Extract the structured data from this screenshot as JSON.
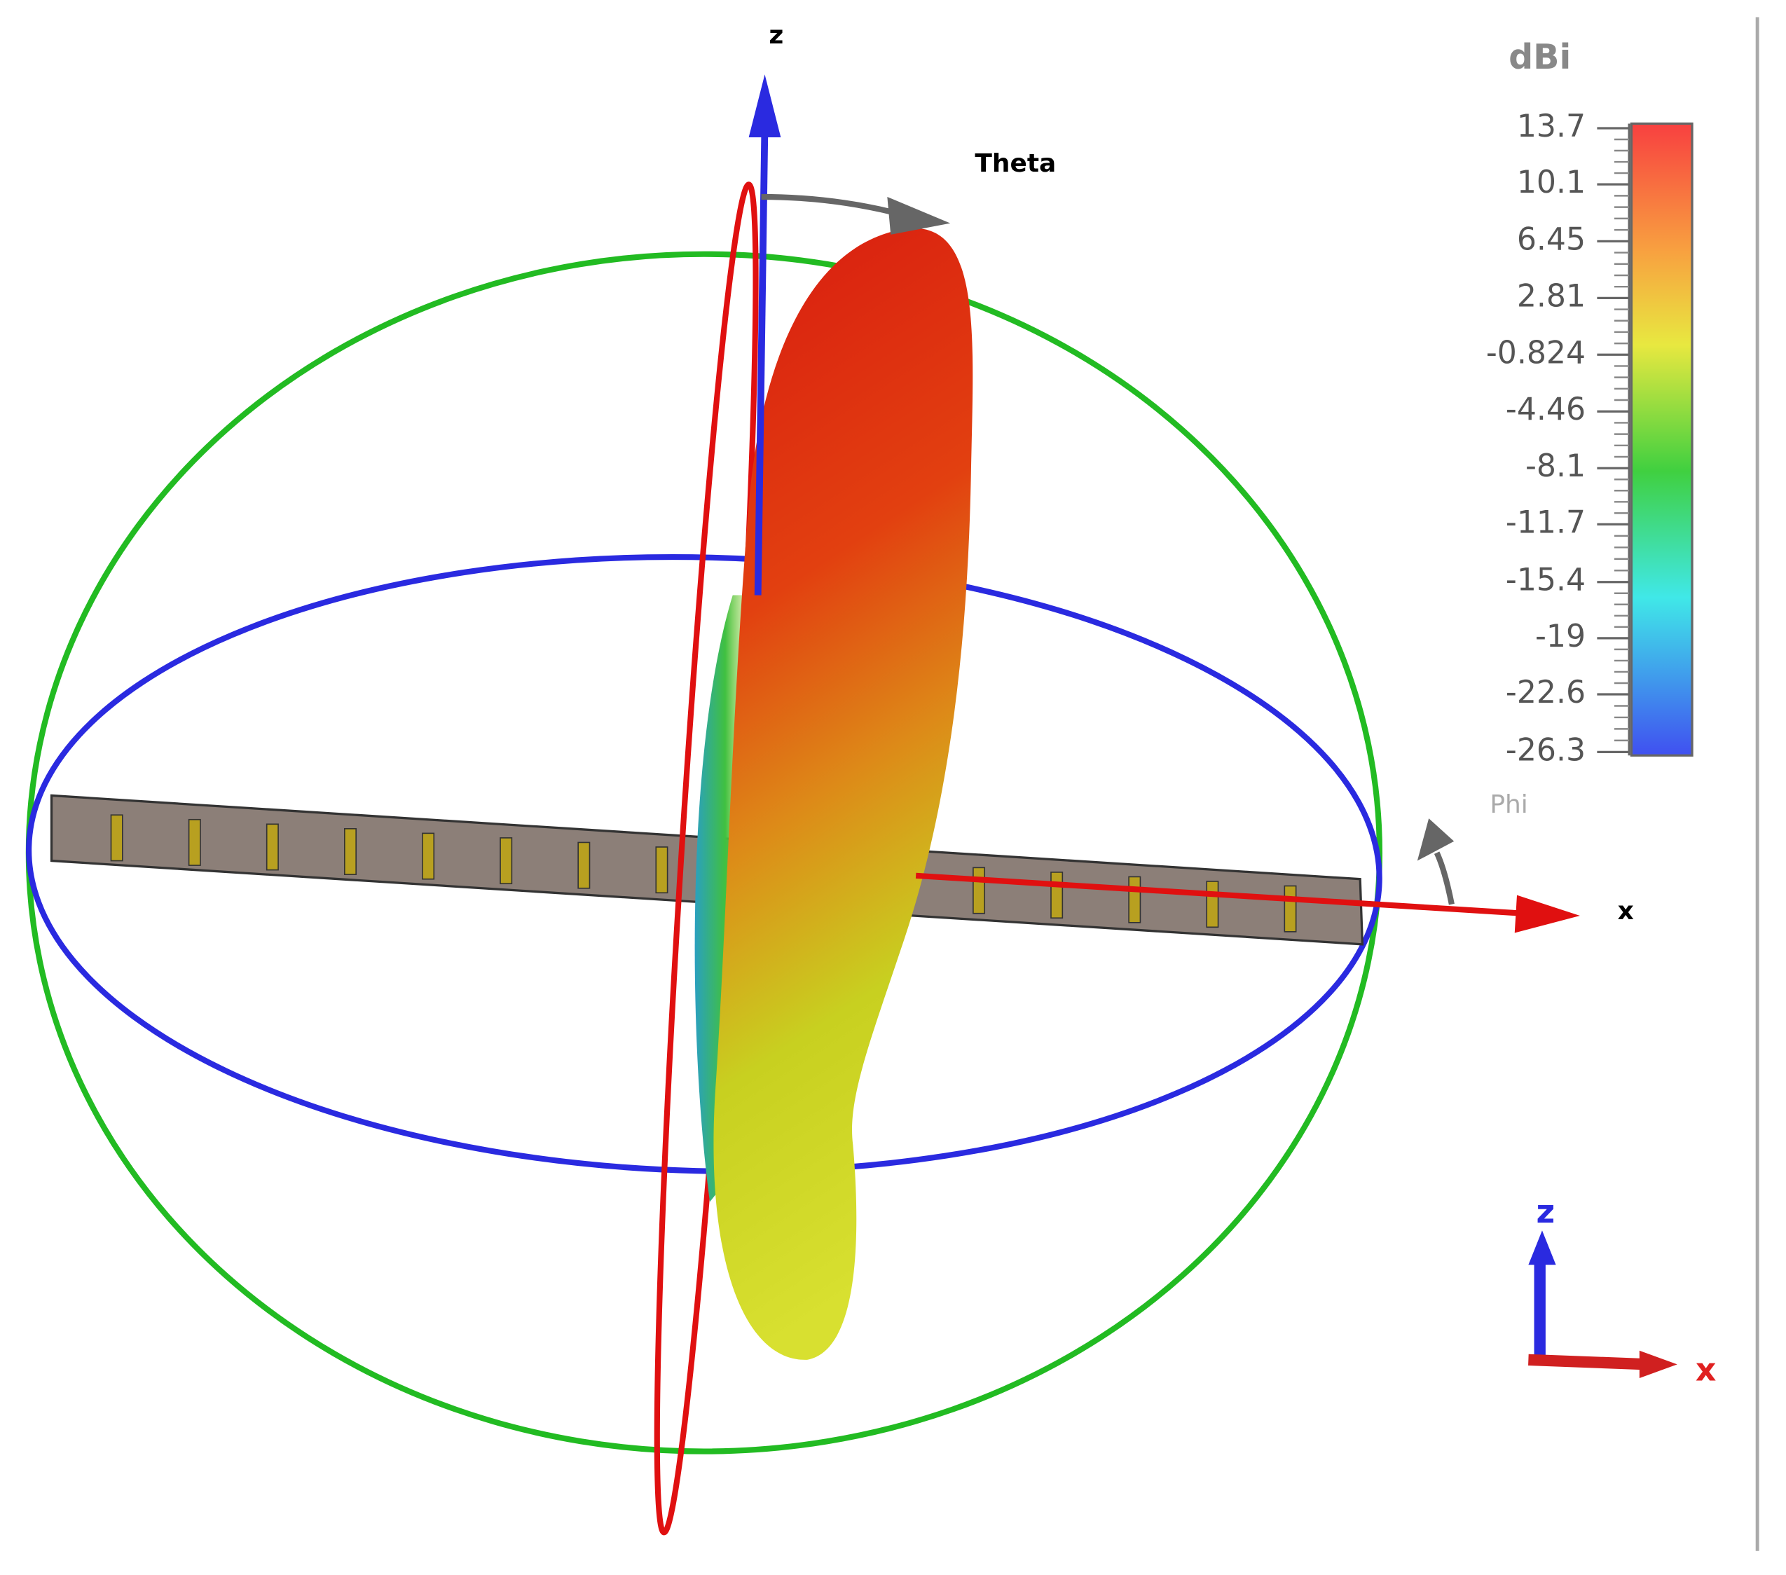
{
  "axes": {
    "z": "z",
    "theta": "Theta",
    "phi": "Phi",
    "x": "x"
  },
  "colorbar": {
    "unit": "dBi",
    "ticks": [
      13.7,
      10.1,
      6.45,
      2.81,
      -0.824,
      -4.46,
      -8.1,
      -11.7,
      -15.4,
      -19,
      -22.6,
      -26.3
    ]
  },
  "triad": {
    "z": "z",
    "x": "x"
  }
}
